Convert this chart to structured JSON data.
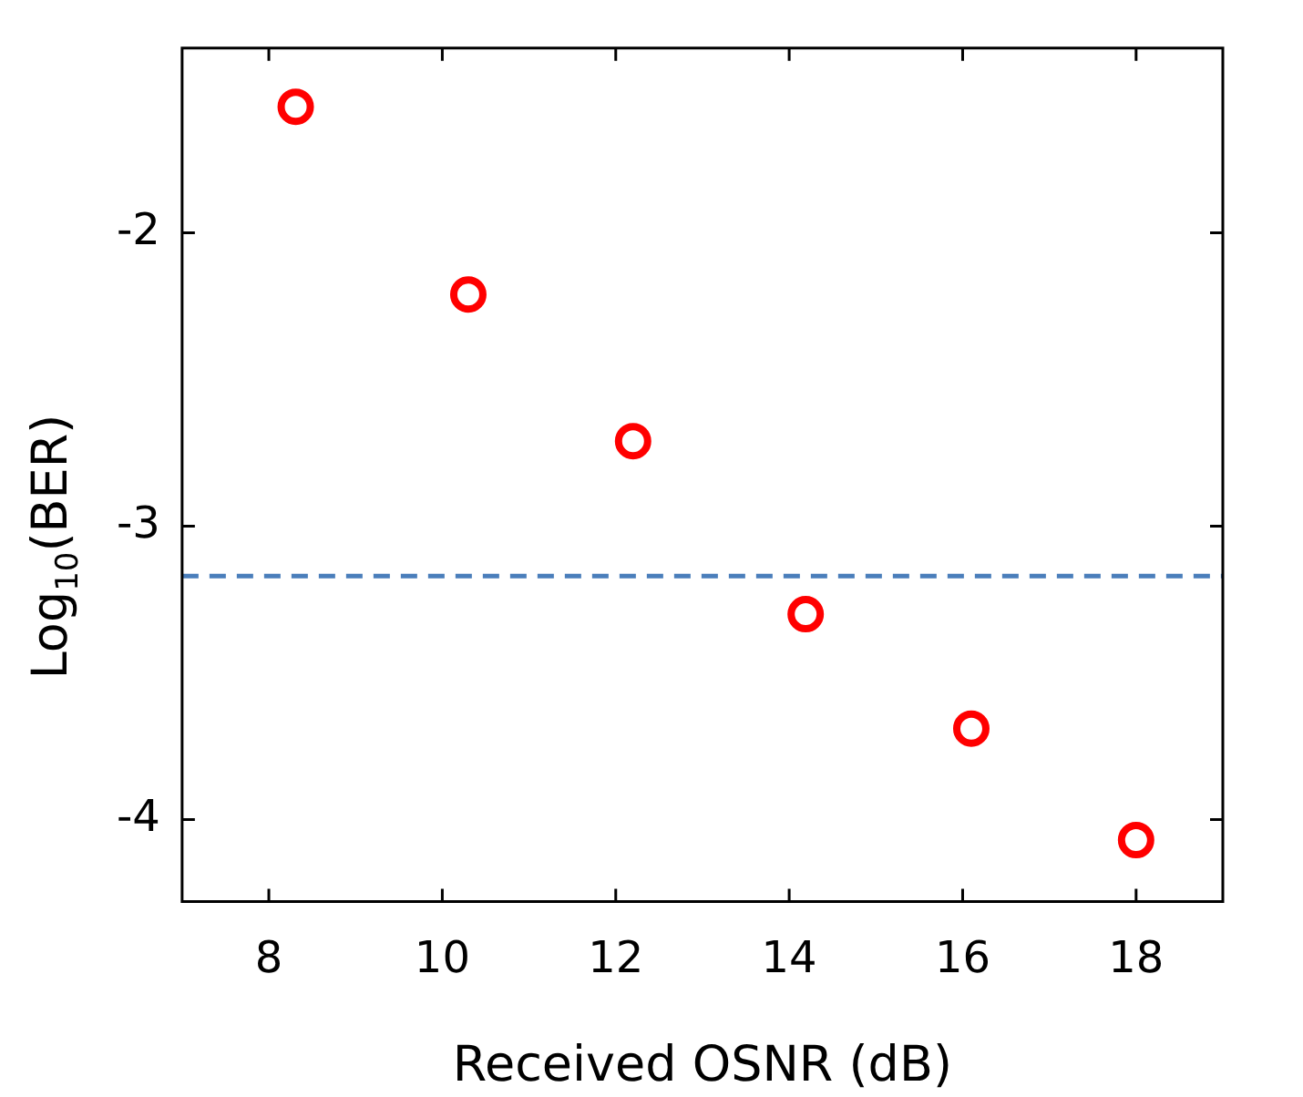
{
  "chart_data": {
    "type": "scatter",
    "xlabel": "Received OSNR (dB)",
    "ylabel": "Log$_{10}$(BER)",
    "x": [
      8.31,
      10.3,
      12.2,
      14.19,
      16.1,
      18.0
    ],
    "series": [
      {
        "color": "#ff0000",
        "values": [
          -1.57,
          -2.21,
          -2.71,
          -3.3,
          -3.69,
          -4.07
        ]
      }
    ],
    "xlim": [
      7,
      19
    ],
    "xticks": [
      8,
      10,
      12,
      14,
      16,
      18
    ],
    "ylim": [
      -4.28,
      -1.37
    ],
    "yticks": [
      -2,
      -3,
      -4
    ],
    "ref_lines": [
      {
        "axis": "y",
        "value": -3.17,
        "color": "#4a7ebb",
        "line_style": "dashed"
      }
    ],
    "marker": "circle",
    "grid": false,
    "legend": false
  }
}
